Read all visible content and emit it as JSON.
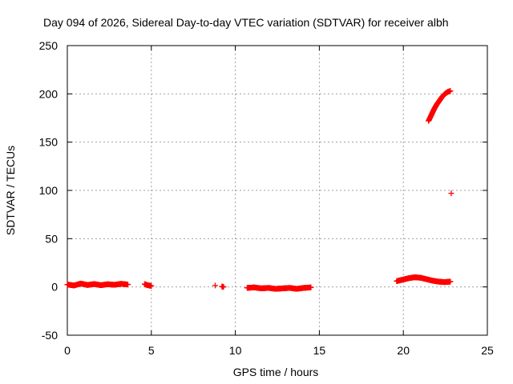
{
  "chart_data": {
    "type": "scatter",
    "title": "Day 094 of 2026, Sidereal Day-to-day VTEC variation (SDTVAR) for receiver albh",
    "xlabel": "GPS time / hours",
    "ylabel": "SDTVAR / TECUs",
    "xlim": [
      0,
      25
    ],
    "ylim": [
      -50,
      250
    ],
    "xticks": [
      0,
      5,
      10,
      15,
      20,
      25
    ],
    "yticks": [
      -50,
      0,
      50,
      100,
      150,
      200,
      250
    ],
    "grid": true,
    "marker": "+",
    "color": "#ff0000",
    "series": [
      {
        "segments": [
          {
            "t0": 0.0,
            "t1": 3.6,
            "y": [
              2.5,
              1.5,
              3.5,
              2.0,
              3.0,
              1.8,
              2.8,
              2.2,
              3.2,
              2.5
            ]
          },
          {
            "t0": 4.6,
            "t1": 5.0,
            "y": [
              3.0,
              2.0,
              1.5,
              1.0
            ]
          },
          {
            "t0": 8.8,
            "t1": 8.8,
            "y": [
              1.5
            ]
          },
          {
            "t0": 9.2,
            "t1": 9.3,
            "y": [
              0.5,
              0.0
            ]
          },
          {
            "t0": 10.7,
            "t1": 14.5,
            "y": [
              -1.0,
              -0.5,
              -1.5,
              -1.0,
              -2.0,
              -1.5,
              -1.0,
              -2.0,
              -1.0,
              -0.5
            ]
          },
          {
            "t0": 19.6,
            "t1": 22.8,
            "y": [
              6.0,
              7.5,
              9.0,
              10.0,
              9.5,
              8.0,
              6.5,
              5.5,
              5.0,
              5.5
            ]
          },
          {
            "t0": 21.5,
            "t1": 22.8,
            "y": [
              172,
              178,
              184,
              189,
              193,
              197,
              200,
              202,
              203
            ]
          },
          {
            "t0": 22.85,
            "t1": 22.85,
            "y": [
              97
            ]
          }
        ]
      }
    ]
  }
}
